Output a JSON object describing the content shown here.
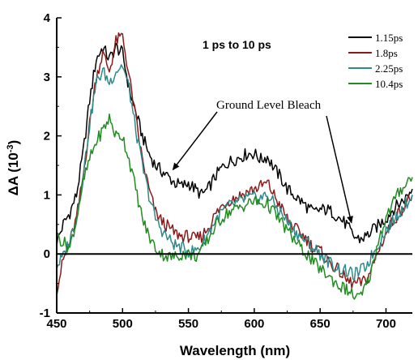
{
  "chart_data": {
    "type": "line",
    "title": "1 ps to 10 ps",
    "xlabel": "Wavelength (nm)",
    "ylabel_main": "ΔA (10",
    "ylabel_exp": "-3",
    "ylabel_close": ")",
    "xlim": [
      450,
      720
    ],
    "ylim": [
      -1,
      4
    ],
    "x_ticks": [
      450,
      500,
      550,
      600,
      650,
      700
    ],
    "x_tick_labels": [
      "450",
      "500",
      "550",
      "600",
      "650",
      "700"
    ],
    "y_ticks": [
      -1,
      0,
      1,
      2,
      3,
      4
    ],
    "y_tick_labels": [
      "-1",
      "0",
      "1",
      "2",
      "3",
      "4"
    ],
    "zero_line": 0,
    "legend_position": "top-right",
    "series": [
      {
        "name": "1.15ps",
        "color": "#000000",
        "x": [
          450,
          455,
          460,
          465,
          470,
          475,
          480,
          485,
          490,
          495,
          500,
          505,
          510,
          515,
          520,
          525,
          530,
          535,
          540,
          545,
          550,
          555,
          560,
          565,
          570,
          575,
          580,
          585,
          590,
          595,
          600,
          605,
          610,
          615,
          620,
          625,
          630,
          635,
          640,
          645,
          650,
          655,
          660,
          665,
          670,
          675,
          680,
          685,
          690,
          695,
          700,
          705,
          710,
          715,
          720
        ],
        "y": [
          0.2,
          0.5,
          0.7,
          1.0,
          1.7,
          2.6,
          3.3,
          3.5,
          3.3,
          3.5,
          3.4,
          2.8,
          2.4,
          2.0,
          1.7,
          1.5,
          1.4,
          1.3,
          1.2,
          1.15,
          1.2,
          1.1,
          1.0,
          1.1,
          1.3,
          1.45,
          1.55,
          1.6,
          1.65,
          1.7,
          1.7,
          1.6,
          1.65,
          1.45,
          1.3,
          1.1,
          1.0,
          0.9,
          0.8,
          0.7,
          0.75,
          0.75,
          0.7,
          0.6,
          0.5,
          0.3,
          0.25,
          0.3,
          0.4,
          0.5,
          0.6,
          0.75,
          0.85,
          0.95,
          1.1
        ]
      },
      {
        "name": "1.8ps",
        "color": "#8b1a1a",
        "x": [
          450,
          455,
          460,
          465,
          470,
          475,
          480,
          485,
          490,
          495,
          500,
          505,
          510,
          515,
          520,
          525,
          530,
          535,
          540,
          545,
          550,
          555,
          560,
          565,
          570,
          575,
          580,
          585,
          590,
          595,
          600,
          605,
          610,
          615,
          620,
          625,
          630,
          635,
          640,
          645,
          650,
          655,
          660,
          665,
          670,
          675,
          680,
          685,
          690,
          695,
          700,
          705,
          710,
          715,
          720
        ],
        "y": [
          -0.6,
          -0.1,
          0.2,
          0.6,
          1.3,
          2.2,
          3.0,
          3.4,
          3.1,
          3.6,
          3.7,
          3.0,
          2.3,
          1.6,
          1.1,
          0.7,
          0.55,
          0.45,
          0.35,
          0.3,
          0.3,
          0.25,
          0.3,
          0.45,
          0.65,
          0.8,
          0.9,
          0.95,
          1.0,
          1.05,
          1.1,
          1.15,
          1.2,
          1.0,
          0.8,
          0.6,
          0.45,
          0.35,
          0.25,
          0.1,
          0.05,
          -0.1,
          -0.2,
          -0.3,
          -0.45,
          -0.5,
          -0.5,
          -0.45,
          -0.2,
          0.1,
          0.35,
          0.55,
          0.7,
          0.85,
          1.0
        ]
      },
      {
        "name": "2.25ps",
        "color": "#2e8b8b",
        "x": [
          450,
          455,
          460,
          465,
          470,
          475,
          480,
          485,
          490,
          495,
          500,
          505,
          510,
          515,
          520,
          525,
          530,
          535,
          540,
          545,
          550,
          555,
          560,
          565,
          570,
          575,
          580,
          585,
          590,
          595,
          600,
          605,
          610,
          615,
          620,
          625,
          630,
          635,
          640,
          645,
          650,
          655,
          660,
          665,
          670,
          675,
          680,
          685,
          690,
          695,
          700,
          705,
          710,
          715,
          720
        ],
        "y": [
          -0.2,
          -0.05,
          0.25,
          0.6,
          1.3,
          2.2,
          2.9,
          3.1,
          2.9,
          3.1,
          3.2,
          2.8,
          2.1,
          1.5,
          1.0,
          0.6,
          0.4,
          0.25,
          0.15,
          0.1,
          0.05,
          0.05,
          0.15,
          0.35,
          0.55,
          0.7,
          0.8,
          0.85,
          0.9,
          0.95,
          0.95,
          0.95,
          1.0,
          0.85,
          0.7,
          0.55,
          0.4,
          0.3,
          0.2,
          0.1,
          0.0,
          -0.1,
          -0.2,
          -0.25,
          -0.3,
          -0.35,
          -0.3,
          -0.2,
          0.0,
          0.2,
          0.4,
          0.55,
          0.7,
          0.85,
          1.0
        ]
      },
      {
        "name": "10.4ps",
        "color": "#228b22",
        "x": [
          450,
          455,
          460,
          465,
          470,
          475,
          480,
          485,
          490,
          495,
          500,
          505,
          510,
          515,
          520,
          525,
          530,
          535,
          540,
          545,
          550,
          555,
          560,
          565,
          570,
          575,
          580,
          585,
          590,
          595,
          600,
          605,
          610,
          615,
          620,
          625,
          630,
          635,
          640,
          645,
          650,
          655,
          660,
          665,
          670,
          675,
          680,
          685,
          690,
          695,
          700,
          705,
          710,
          715,
          720
        ],
        "y": [
          0.3,
          0.2,
          0.1,
          0.6,
          1.2,
          1.6,
          1.9,
          2.1,
          2.3,
          2.0,
          2.0,
          1.6,
          1.1,
          0.6,
          0.3,
          0.1,
          0.0,
          -0.05,
          -0.05,
          0.0,
          0.0,
          -0.05,
          0.05,
          0.25,
          0.45,
          0.6,
          0.7,
          0.75,
          0.8,
          0.85,
          0.9,
          0.85,
          0.85,
          0.7,
          0.55,
          0.4,
          0.25,
          0.1,
          0.0,
          -0.15,
          -0.25,
          -0.35,
          -0.45,
          -0.55,
          -0.6,
          -0.7,
          -0.75,
          -0.55,
          -0.2,
          0.3,
          0.6,
          0.85,
          1.05,
          1.2,
          1.3
        ]
      }
    ],
    "annotations": [
      {
        "text": "Ground Level Bleach",
        "targets": [
          {
            "x": 537,
            "y": 1.4
          },
          {
            "x": 675,
            "y": 0.5
          }
        ]
      }
    ]
  }
}
